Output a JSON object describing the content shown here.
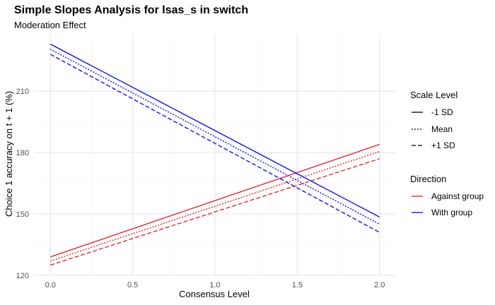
{
  "chart_data": {
    "type": "line",
    "title": "Simple Slopes Analysis for lsas_s in switch",
    "subtitle": "Moderation Effect",
    "xlabel": "Consensus Level",
    "ylabel": "Choice 1 accuracy on t + 1 (%)",
    "xlim": [
      -0.1,
      2.1
    ],
    "ylim": [
      120,
      238
    ],
    "x_ticks": [
      0.0,
      0.5,
      1.0,
      1.5,
      2.0
    ],
    "x_tick_labels": [
      "0.0",
      "0.5",
      "1.0",
      "1.5",
      "2.0"
    ],
    "y_ticks": [
      120,
      150,
      180,
      210
    ],
    "y_tick_labels": [
      "120",
      "150",
      "180",
      "210"
    ],
    "grid": true,
    "legend_position": "right",
    "legends": [
      {
        "title": "Scale Level",
        "entries": [
          {
            "label": "-1 SD",
            "linetype": "solid"
          },
          {
            "label": "Mean",
            "linetype": "dotted"
          },
          {
            "label": "+1 SD",
            "linetype": "dashed"
          }
        ]
      },
      {
        "title": "Direction",
        "entries": [
          {
            "label": "Against group",
            "color": "#e41a1c"
          },
          {
            "label": "With group",
            "color": "#0000ff"
          }
        ]
      }
    ],
    "colors": {
      "Against group": "#e41a1c",
      "With group": "#0000ff"
    },
    "series": [
      {
        "direction": "Against group",
        "scale": "-1 SD",
        "linetype": "solid",
        "x": [
          0,
          2
        ],
        "y": [
          129,
          184
        ]
      },
      {
        "direction": "Against group",
        "scale": "Mean",
        "linetype": "dotted",
        "x": [
          0,
          2
        ],
        "y": [
          127,
          180.5
        ]
      },
      {
        "direction": "Against group",
        "scale": "+1 SD",
        "linetype": "dashed",
        "x": [
          0,
          2
        ],
        "y": [
          125,
          177
        ]
      },
      {
        "direction": "With group",
        "scale": "-1 SD",
        "linetype": "solid",
        "x": [
          0,
          2
        ],
        "y": [
          233,
          148.5
        ]
      },
      {
        "direction": "With group",
        "scale": "Mean",
        "linetype": "dotted",
        "x": [
          0,
          2
        ],
        "y": [
          230.5,
          145
        ]
      },
      {
        "direction": "With group",
        "scale": "+1 SD",
        "linetype": "dashed",
        "x": [
          0,
          2
        ],
        "y": [
          228,
          141
        ]
      }
    ]
  }
}
